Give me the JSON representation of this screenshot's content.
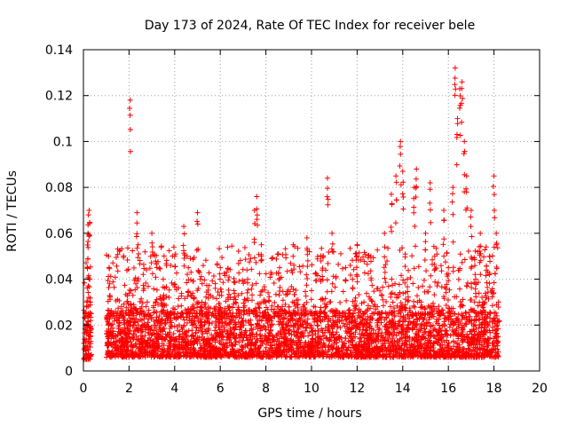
{
  "chart_data": {
    "type": "scatter",
    "title": "Day 173 of 2024, Rate Of TEC Index for receiver bele",
    "xlabel": "GPS time / hours",
    "ylabel": "ROTI / TECUs",
    "xlim": [
      0,
      20
    ],
    "ylim": [
      0,
      0.14
    ],
    "xticks": [
      0,
      2,
      4,
      6,
      8,
      10,
      12,
      14,
      16,
      18,
      20
    ],
    "yticks": [
      0,
      0.02,
      0.04,
      0.06,
      0.08,
      0.1,
      0.12,
      0.14
    ],
    "xtick_labels": [
      "0",
      "2",
      "4",
      "6",
      "8",
      "10",
      "12",
      "14",
      "16",
      "18",
      "20"
    ],
    "ytick_labels": [
      "0",
      "0.02",
      "0.04",
      "0.06",
      "0.08",
      "0.1",
      "0.12",
      "0.14"
    ],
    "grid": true,
    "marker": "plus",
    "series_color": "#ff0000",
    "series": [
      {
        "name": "ROTI",
        "points": [
          [
            0.05,
            0.01
          ],
          [
            0.1,
            0.018
          ],
          [
            0.12,
            0.025
          ],
          [
            0.15,
            0.03
          ],
          [
            0.18,
            0.045
          ],
          [
            0.2,
            0.06
          ],
          [
            0.22,
            0.068
          ],
          [
            0.25,
            0.07
          ],
          [
            0.28,
            0.04
          ],
          [
            0.3,
            0.015
          ],
          [
            0.32,
            0.022
          ],
          [
            1.05,
            0.012
          ],
          [
            1.1,
            0.02
          ],
          [
            1.15,
            0.038
          ],
          [
            1.1,
            0.05
          ],
          [
            1.3,
            0.015
          ],
          [
            1.5,
            0.01
          ],
          [
            1.7,
            0.018
          ],
          [
            1.9,
            0.014
          ],
          [
            2.05,
            0.118
          ],
          [
            2.2,
            0.025
          ],
          [
            2.35,
            0.069
          ],
          [
            2.4,
            0.055
          ],
          [
            2.6,
            0.02
          ],
          [
            2.8,
            0.03
          ],
          [
            3.0,
            0.06
          ],
          [
            3.2,
            0.015
          ],
          [
            3.5,
            0.04
          ],
          [
            3.8,
            0.025
          ],
          [
            4.0,
            0.05
          ],
          [
            4.2,
            0.02
          ],
          [
            4.4,
            0.063
          ],
          [
            4.6,
            0.045
          ],
          [
            4.8,
            0.015
          ],
          [
            5.0,
            0.069
          ],
          [
            5.2,
            0.03
          ],
          [
            5.5,
            0.012
          ],
          [
            5.8,
            0.025
          ],
          [
            6.0,
            0.045
          ],
          [
            6.3,
            0.02
          ],
          [
            6.6,
            0.035
          ],
          [
            6.9,
            0.015
          ],
          [
            7.2,
            0.04
          ],
          [
            7.5,
            0.07
          ],
          [
            7.6,
            0.076
          ],
          [
            7.8,
            0.055
          ],
          [
            8.0,
            0.03
          ],
          [
            8.3,
            0.015
          ],
          [
            8.6,
            0.045
          ],
          [
            8.9,
            0.025
          ],
          [
            9.2,
            0.055
          ],
          [
            9.5,
            0.02
          ],
          [
            9.8,
            0.058
          ],
          [
            10.0,
            0.035
          ],
          [
            10.3,
            0.015
          ],
          [
            10.5,
            0.05
          ],
          [
            10.7,
            0.084
          ],
          [
            10.9,
            0.06
          ],
          [
            11.2,
            0.025
          ],
          [
            11.5,
            0.045
          ],
          [
            11.8,
            0.04
          ],
          [
            12.0,
            0.055
          ],
          [
            12.3,
            0.03
          ],
          [
            12.6,
            0.05
          ],
          [
            12.9,
            0.02
          ],
          [
            13.2,
            0.06
          ],
          [
            13.5,
            0.077
          ],
          [
            13.7,
            0.085
          ],
          [
            13.9,
            0.1
          ],
          [
            14.0,
            0.087
          ],
          [
            14.2,
            0.04
          ],
          [
            14.5,
            0.08
          ],
          [
            14.6,
            0.088
          ],
          [
            14.8,
            0.03
          ],
          [
            15.0,
            0.06
          ],
          [
            15.2,
            0.082
          ],
          [
            15.4,
            0.05
          ],
          [
            15.6,
            0.025
          ],
          [
            15.8,
            0.07
          ],
          [
            16.0,
            0.045
          ],
          [
            16.2,
            0.08
          ],
          [
            16.3,
            0.132
          ],
          [
            16.4,
            0.11
          ],
          [
            16.5,
            0.123
          ],
          [
            16.6,
            0.126
          ],
          [
            16.7,
            0.1
          ],
          [
            16.8,
            0.085
          ],
          [
            17.0,
            0.07
          ],
          [
            17.2,
            0.04
          ],
          [
            17.4,
            0.06
          ],
          [
            17.6,
            0.03
          ],
          [
            17.8,
            0.05
          ],
          [
            18.0,
            0.085
          ],
          [
            18.1,
            0.06
          ],
          [
            18.15,
            0.02
          ],
          [
            18.2,
            0.03
          ]
        ]
      }
    ],
    "dense_bands": [
      {
        "x_start": 0.0,
        "x_end": 0.35,
        "y_low": 0.005,
        "y_high": 0.025
      },
      {
        "x_start": 1.0,
        "x_end": 18.2,
        "y_low": 0.006,
        "y_high": 0.025
      }
    ]
  }
}
